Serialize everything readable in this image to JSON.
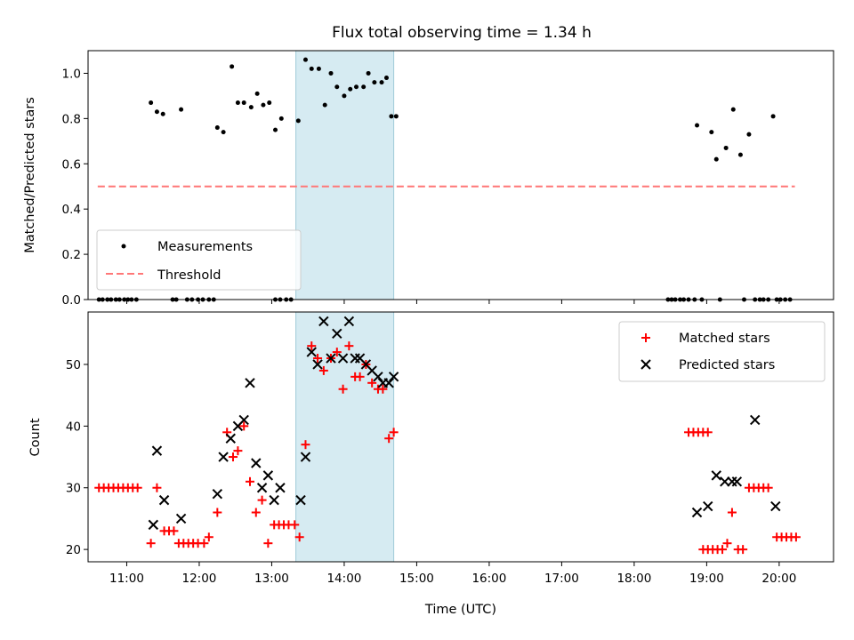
{
  "chart_data": {
    "title": "Flux total observing time = 1.34 h",
    "xlabel": "Time (UTC)",
    "x_ticks": [
      "11:00",
      "12:00",
      "13:00",
      "14:00",
      "15:00",
      "16:00",
      "17:00",
      "18:00",
      "19:00",
      "20:00"
    ],
    "xlim": [
      "10:28",
      "20:45"
    ],
    "highlight_span": [
      "13:20",
      "14:41"
    ],
    "highlight_color": "#add8e6",
    "panels": [
      {
        "type": "scatter",
        "ylabel": "Matched/Predicted stars",
        "ylim": [
          0,
          1.1
        ],
        "y_ticks": [
          "0.0",
          "0.2",
          "0.4",
          "0.6",
          "0.8",
          "1.0"
        ],
        "legend_position": "lower left",
        "threshold": {
          "name": "Threshold",
          "value": 0.5,
          "x_range": [
            "10:36",
            "20:13"
          ],
          "color": "#ff7777"
        },
        "series": [
          {
            "name": "Measurements",
            "color": "#000000",
            "points": [
              [
                "10:37",
                0
              ],
              [
                "10:40",
                0
              ],
              [
                "10:44",
                0
              ],
              [
                "10:47",
                0
              ],
              [
                "10:51",
                0
              ],
              [
                "10:54",
                0
              ],
              [
                "10:58",
                0
              ],
              [
                "11:01",
                0
              ],
              [
                "11:04",
                0
              ],
              [
                "11:08",
                0
              ],
              [
                "11:20",
                0.87
              ],
              [
                "11:25",
                0.83
              ],
              [
                "11:30",
                0.82
              ],
              [
                "11:38",
                0
              ],
              [
                "11:41",
                0
              ],
              [
                "11:45",
                0.84
              ],
              [
                "11:50",
                0
              ],
              [
                "11:54",
                0
              ],
              [
                "11:59",
                0
              ],
              [
                "12:03",
                0
              ],
              [
                "12:08",
                0
              ],
              [
                "12:12",
                0
              ],
              [
                "12:15",
                0.76
              ],
              [
                "12:20",
                0.74
              ],
              [
                "12:27",
                1.03
              ],
              [
                "12:32",
                0.87
              ],
              [
                "12:37",
                0.87
              ],
              [
                "12:43",
                0.85
              ],
              [
                "12:48",
                0.91
              ],
              [
                "12:53",
                0.86
              ],
              [
                "12:58",
                0.87
              ],
              [
                "13:03",
                0.75
              ],
              [
                "13:08",
                0.8
              ],
              [
                "13:03",
                0
              ],
              [
                "13:07",
                0
              ],
              [
                "13:12",
                0
              ],
              [
                "13:16",
                0
              ],
              [
                "13:22",
                0.79
              ],
              [
                "13:28",
                1.06
              ],
              [
                "13:33",
                1.02
              ],
              [
                "13:39",
                1.02
              ],
              [
                "13:44",
                0.86
              ],
              [
                "13:49",
                1.0
              ],
              [
                "13:54",
                0.94
              ],
              [
                "14:00",
                0.9
              ],
              [
                "14:05",
                0.93
              ],
              [
                "14:10",
                0.94
              ],
              [
                "14:16",
                0.94
              ],
              [
                "14:20",
                1.0
              ],
              [
                "14:25",
                0.96
              ],
              [
                "14:31",
                0.96
              ],
              [
                "14:35",
                0.98
              ],
              [
                "14:39",
                0.81
              ],
              [
                "14:43",
                0.81
              ],
              [
                "18:28",
                0
              ],
              [
                "18:31",
                0
              ],
              [
                "18:34",
                0
              ],
              [
                "18:38",
                0
              ],
              [
                "18:41",
                0
              ],
              [
                "18:45",
                0
              ],
              [
                "18:50",
                0
              ],
              [
                "18:52",
                0.77
              ],
              [
                "18:56",
                0
              ],
              [
                "19:04",
                0.74
              ],
              [
                "19:08",
                0.62
              ],
              [
                "19:11",
                0
              ],
              [
                "19:16",
                0.67
              ],
              [
                "19:22",
                0.84
              ],
              [
                "19:28",
                0.64
              ],
              [
                "19:31",
                0
              ],
              [
                "19:35",
                0.73
              ],
              [
                "19:40",
                0
              ],
              [
                "19:44",
                0
              ],
              [
                "19:47",
                0
              ],
              [
                "19:51",
                0
              ],
              [
                "19:55",
                0.81
              ],
              [
                "19:58",
                0
              ],
              [
                "20:01",
                0
              ],
              [
                "20:05",
                0
              ],
              [
                "20:09",
                0
              ]
            ]
          }
        ]
      },
      {
        "type": "scatter",
        "ylabel": "Count",
        "ylim": [
          18,
          58.5
        ],
        "y_ticks": [
          "20",
          "30",
          "40",
          "50"
        ],
        "legend_position": "upper right",
        "series": [
          {
            "name": "Matched stars",
            "marker": "+",
            "color": "#ff0000",
            "points": [
              [
                "10:37",
                30
              ],
              [
                "10:41",
                30
              ],
              [
                "10:45",
                30
              ],
              [
                "10:49",
                30
              ],
              [
                "10:53",
                30
              ],
              [
                "10:57",
                30
              ],
              [
                "11:01",
                30
              ],
              [
                "11:05",
                30
              ],
              [
                "11:09",
                30
              ],
              [
                "11:20",
                21
              ],
              [
                "11:25",
                30
              ],
              [
                "11:31",
                23
              ],
              [
                "11:35",
                23
              ],
              [
                "11:39",
                23
              ],
              [
                "11:43",
                21
              ],
              [
                "11:47",
                21
              ],
              [
                "11:51",
                21
              ],
              [
                "11:55",
                21
              ],
              [
                "11:59",
                21
              ],
              [
                "12:04",
                21
              ],
              [
                "12:08",
                22
              ],
              [
                "12:15",
                26
              ],
              [
                "12:23",
                39
              ],
              [
                "12:28",
                35
              ],
              [
                "12:32",
                36
              ],
              [
                "12:37",
                40
              ],
              [
                "12:42",
                31
              ],
              [
                "12:47",
                26
              ],
              [
                "12:52",
                28
              ],
              [
                "12:57",
                21
              ],
              [
                "13:02",
                24
              ],
              [
                "13:06",
                24
              ],
              [
                "13:10",
                24
              ],
              [
                "13:14",
                24
              ],
              [
                "13:19",
                24
              ],
              [
                "13:23",
                22
              ],
              [
                "13:28",
                37
              ],
              [
                "13:33",
                53
              ],
              [
                "13:38",
                51
              ],
              [
                "13:43",
                49
              ],
              [
                "13:49",
                51
              ],
              [
                "13:54",
                52
              ],
              [
                "13:59",
                46
              ],
              [
                "14:04",
                53
              ],
              [
                "14:09",
                48
              ],
              [
                "14:13",
                48
              ],
              [
                "14:18",
                50
              ],
              [
                "14:23",
                47
              ],
              [
                "14:28",
                46
              ],
              [
                "14:32",
                46
              ],
              [
                "14:37",
                38
              ],
              [
                "14:41",
                39
              ],
              [
                "18:45",
                39
              ],
              [
                "18:49",
                39
              ],
              [
                "18:53",
                39
              ],
              [
                "18:57",
                39
              ],
              [
                "19:01",
                39
              ],
              [
                "18:57",
                20
              ],
              [
                "19:01",
                20
              ],
              [
                "19:05",
                20
              ],
              [
                "19:09",
                20
              ],
              [
                "19:13",
                20
              ],
              [
                "19:17",
                21
              ],
              [
                "19:21",
                26
              ],
              [
                "19:26",
                20
              ],
              [
                "19:30",
                20
              ],
              [
                "19:35",
                30
              ],
              [
                "19:39",
                30
              ],
              [
                "19:43",
                30
              ],
              [
                "19:47",
                30
              ],
              [
                "19:51",
                30
              ],
              [
                "19:58",
                22
              ],
              [
                "20:02",
                22
              ],
              [
                "20:06",
                22
              ],
              [
                "20:10",
                22
              ],
              [
                "20:14",
                22
              ]
            ]
          },
          {
            "name": "Predicted stars",
            "marker": "x",
            "color": "#000000",
            "points": [
              [
                "11:22",
                24
              ],
              [
                "11:25",
                36
              ],
              [
                "11:31",
                28
              ],
              [
                "11:45",
                25
              ],
              [
                "12:15",
                29
              ],
              [
                "12:20",
                35
              ],
              [
                "12:26",
                38
              ],
              [
                "12:32",
                40
              ],
              [
                "12:37",
                41
              ],
              [
                "12:42",
                47
              ],
              [
                "12:47",
                34
              ],
              [
                "12:52",
                30
              ],
              [
                "12:57",
                32
              ],
              [
                "13:02",
                28
              ],
              [
                "13:07",
                30
              ],
              [
                "13:24",
                28
              ],
              [
                "13:28",
                35
              ],
              [
                "13:33",
                52
              ],
              [
                "13:38",
                50
              ],
              [
                "13:43",
                57
              ],
              [
                "13:49",
                51
              ],
              [
                "13:54",
                55
              ],
              [
                "13:59",
                51
              ],
              [
                "14:04",
                57
              ],
              [
                "14:09",
                51
              ],
              [
                "14:13",
                51
              ],
              [
                "14:18",
                50
              ],
              [
                "14:23",
                49
              ],
              [
                "14:28",
                48
              ],
              [
                "14:32",
                47
              ],
              [
                "14:37",
                47
              ],
              [
                "14:41",
                48
              ],
              [
                "18:52",
                26
              ],
              [
                "19:01",
                27
              ],
              [
                "19:08",
                32
              ],
              [
                "19:15",
                31
              ],
              [
                "19:21",
                31
              ],
              [
                "19:25",
                31
              ],
              [
                "19:40",
                41
              ],
              [
                "19:57",
                27
              ]
            ]
          }
        ]
      }
    ]
  }
}
